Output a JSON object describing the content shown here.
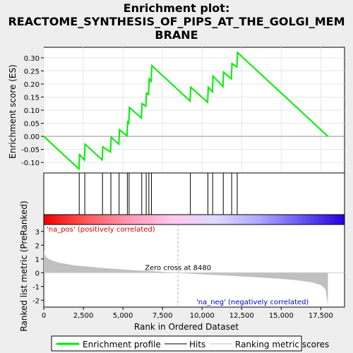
{
  "title_lines": [
    "Enrichment plot:",
    "REACTOME_SYNTHESIS_OF_PIPS_AT_THE_GOLGI_MEM",
    "BRANE"
  ],
  "chart_data": {
    "type": "line",
    "x_range": [
      0,
      19000
    ],
    "x_ticks": [
      0,
      2500,
      5000,
      7500,
      10000,
      12500,
      15000,
      17500
    ],
    "x_tick_labels": [
      "0",
      "2,500",
      "5,000",
      "7,500",
      "10,000",
      "12,500",
      "15,000",
      "17,500"
    ],
    "xlabel": "Rank in Ordered Dataset",
    "es_panel": {
      "ylabel": "Enrichment score (ES)",
      "ylim": [
        -0.14,
        0.34
      ],
      "y_ticks": [
        -0.1,
        -0.05,
        0.0,
        0.05,
        0.1,
        0.15,
        0.2,
        0.25,
        0.3
      ],
      "y_tick_labels": [
        "-0.10",
        "-0.05",
        "0.00",
        "0.05",
        "0.10",
        "0.15",
        "0.20",
        "0.25",
        "0.30"
      ],
      "series_name": "Enrichment profile",
      "color": "#00ee00",
      "points": [
        [
          0,
          0.0
        ],
        [
          2220,
          -0.125
        ],
        [
          2260,
          -0.07
        ],
        [
          2570,
          -0.09
        ],
        [
          2610,
          -0.03
        ],
        [
          3690,
          -0.09
        ],
        [
          3730,
          -0.04
        ],
        [
          4220,
          -0.06
        ],
        [
          4260,
          -0.003
        ],
        [
          4740,
          -0.03
        ],
        [
          4780,
          0.025
        ],
        [
          5260,
          0.002
        ],
        [
          5300,
          0.055
        ],
        [
          5370,
          0.05
        ],
        [
          5410,
          0.11
        ],
        [
          6170,
          0.07
        ],
        [
          6210,
          0.125
        ],
        [
          6450,
          0.115
        ],
        [
          6490,
          0.165
        ],
        [
          6620,
          0.16
        ],
        [
          6660,
          0.22
        ],
        [
          6780,
          0.21
        ],
        [
          6830,
          0.27
        ],
        [
          9240,
          0.135
        ],
        [
          9280,
          0.188
        ],
        [
          10350,
          0.13
        ],
        [
          10390,
          0.188
        ],
        [
          10650,
          0.17
        ],
        [
          10690,
          0.23
        ],
        [
          11320,
          0.19
        ],
        [
          11360,
          0.245
        ],
        [
          11850,
          0.22
        ],
        [
          11890,
          0.278
        ],
        [
          12200,
          0.265
        ],
        [
          12240,
          0.32
        ],
        [
          17950,
          0.0
        ]
      ]
    },
    "hits": [
      2240,
      2590,
      3710,
      4240,
      4760,
      5280,
      5390,
      6190,
      6470,
      6640,
      6800,
      9260,
      10370,
      10670,
      11340,
      11870,
      12220
    ],
    "hits_label": "Hits",
    "colorbar_stops": [
      "#ee0000",
      "#ff5a5a",
      "#ff9ab4",
      "#ffc8f0",
      "#e0d8ff",
      "#b0a8ff",
      "#6a55f0",
      "#2200dd"
    ],
    "metric_panel": {
      "ylabel": "Ranked list metric (PreRanked)",
      "ylim": [
        -2.5,
        3.5
      ],
      "y_ticks": [
        -2,
        -1,
        0,
        1,
        2,
        3
      ],
      "y_tick_labels": [
        "-2",
        "-1",
        "0",
        "1",
        "2",
        "3"
      ],
      "series_name": "Ranking metric scores",
      "profile": [
        [
          0,
          1.6
        ],
        [
          100,
          1.2
        ],
        [
          300,
          1.0
        ],
        [
          600,
          0.85
        ],
        [
          1000,
          0.72
        ],
        [
          2000,
          0.52
        ],
        [
          3000,
          0.42
        ],
        [
          4000,
          0.32
        ],
        [
          5000,
          0.24
        ],
        [
          6000,
          0.16
        ],
        [
          7000,
          0.1
        ],
        [
          8000,
          0.03
        ],
        [
          8480,
          0.0
        ],
        [
          9000,
          -0.05
        ],
        [
          10000,
          -0.12
        ],
        [
          11000,
          -0.18
        ],
        [
          12000,
          -0.24
        ],
        [
          13000,
          -0.3
        ],
        [
          14000,
          -0.37
        ],
        [
          15000,
          -0.45
        ],
        [
          16000,
          -0.55
        ],
        [
          17000,
          -0.72
        ],
        [
          17500,
          -0.9
        ],
        [
          17800,
          -1.2
        ],
        [
          17950,
          -2.4
        ]
      ],
      "zero_cross": 8480,
      "zero_cross_label": "Zero cross at 8480",
      "pos_label": "'na_pos' (positively correlated)",
      "neg_label": "'na_neg' (negatively correlated)"
    },
    "legend": {
      "position": "bottom",
      "items": [
        {
          "label": "Enrichment profile",
          "color": "#00ee00"
        },
        {
          "label": "Hits",
          "color": "#000000"
        },
        {
          "label": "Ranking metric scores",
          "color": "#c0c0c0"
        }
      ]
    }
  }
}
